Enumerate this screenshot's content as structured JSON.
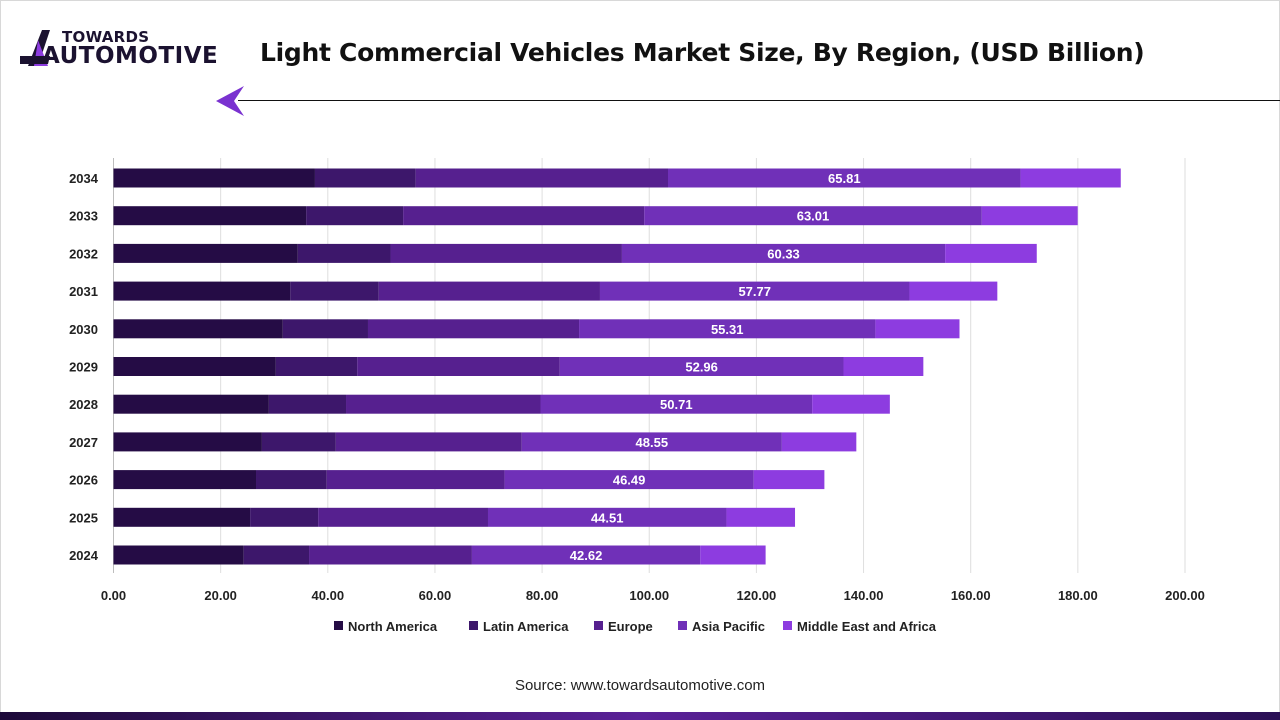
{
  "header": {
    "logo_top": "TOWARDS",
    "logo_bottom": "AUTOMOTIVE",
    "title": "Light Commercial Vehicles Market Size, By Region, (USD Billion)"
  },
  "footer": {
    "source": "Source: www.towardsautomotive.com"
  },
  "chart_data": {
    "type": "bar",
    "orientation": "horizontal",
    "stacked": true,
    "title": "Light Commercial Vehicles Market Size, By Region, (USD Billion)",
    "xlabel": "",
    "ylabel": "",
    "xlim": [
      0,
      200
    ],
    "x_ticks": [
      "0.00",
      "20.00",
      "40.00",
      "60.00",
      "80.00",
      "100.00",
      "120.00",
      "140.00",
      "160.00",
      "180.00",
      "200.00"
    ],
    "grid": true,
    "legend_position": "bottom",
    "categories": [
      "2034",
      "2033",
      "2032",
      "2031",
      "2030",
      "2029",
      "2028",
      "2027",
      "2026",
      "2025",
      "2024"
    ],
    "series": [
      {
        "name": "North America",
        "color": "#250c45",
        "values": [
          37.6,
          35.96,
          34.4,
          33.0,
          31.6,
          30.3,
          29.0,
          27.7,
          26.6,
          25.5,
          24.3
        ]
      },
      {
        "name": "Latin America",
        "color": "#3d176b",
        "values": [
          18.8,
          18.1,
          17.3,
          16.5,
          15.9,
          15.2,
          14.4,
          13.8,
          13.2,
          12.7,
          12.2
        ]
      },
      {
        "name": "Europe",
        "color": "#56208f",
        "values": [
          47.1,
          45.0,
          43.2,
          41.3,
          39.4,
          37.8,
          36.3,
          34.7,
          33.2,
          31.7,
          30.4
        ]
      },
      {
        "name": "Asia Pacific",
        "color": "#7030b8",
        "values": [
          65.81,
          63.01,
          60.33,
          57.77,
          55.31,
          52.96,
          50.71,
          48.55,
          46.49,
          44.51,
          42.62
        ],
        "labels": [
          "65.81",
          "63.01",
          "60.33",
          "57.77",
          "55.31",
          "52.96",
          "50.71",
          "48.55",
          "46.49",
          "44.51",
          "42.62"
        ]
      },
      {
        "name": "Middle East and Africa",
        "color": "#8d3ce0",
        "values": [
          18.7,
          17.9,
          17.1,
          16.4,
          15.7,
          14.9,
          14.5,
          13.9,
          13.2,
          12.8,
          12.2
        ]
      }
    ]
  }
}
